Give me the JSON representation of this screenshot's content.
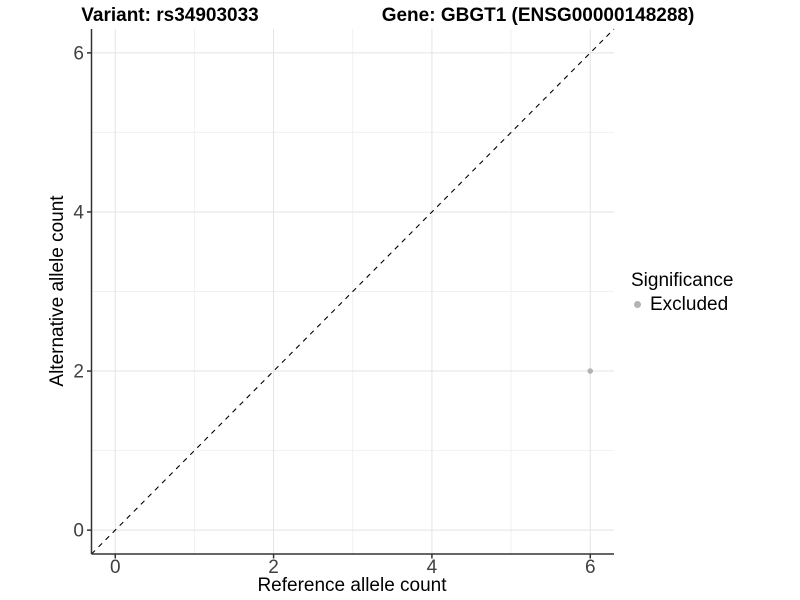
{
  "chart_data": {
    "type": "scatter",
    "title_left": "Variant: rs34903033",
    "title_right": "Gene: GBGT1 (ENSG00000148288)",
    "xlabel": "Reference allele count",
    "ylabel": "Alternative allele count",
    "xlim": [
      -0.3,
      6.3
    ],
    "ylim": [
      -0.3,
      6.3
    ],
    "x_ticks": [
      0,
      2,
      4,
      6
    ],
    "y_ticks": [
      0,
      2,
      4,
      6
    ],
    "x_minor_ticks": [
      1,
      3,
      5
    ],
    "y_minor_ticks": [
      1,
      3,
      5
    ],
    "grid": "major and minor gridlines, light gray on white, left and bottom axis lines only",
    "reference_line": {
      "type": "identity y=x",
      "style": "dashed",
      "color": "#000000"
    },
    "series": [
      {
        "name": "Excluded",
        "color": "#b3b3b3",
        "marker": "circle",
        "points": [
          {
            "x": 6,
            "y": 2
          }
        ]
      }
    ],
    "legend": {
      "title": "Significance",
      "position": "right",
      "entries": [
        {
          "label": "Excluded",
          "color": "#b3b3b3"
        }
      ]
    },
    "colors": {
      "grid_major": "#e3e3e3",
      "grid_minor": "#f1f1f1",
      "axis_line": "#333333",
      "tick_text": "#404040",
      "title_text": "#000000"
    }
  }
}
